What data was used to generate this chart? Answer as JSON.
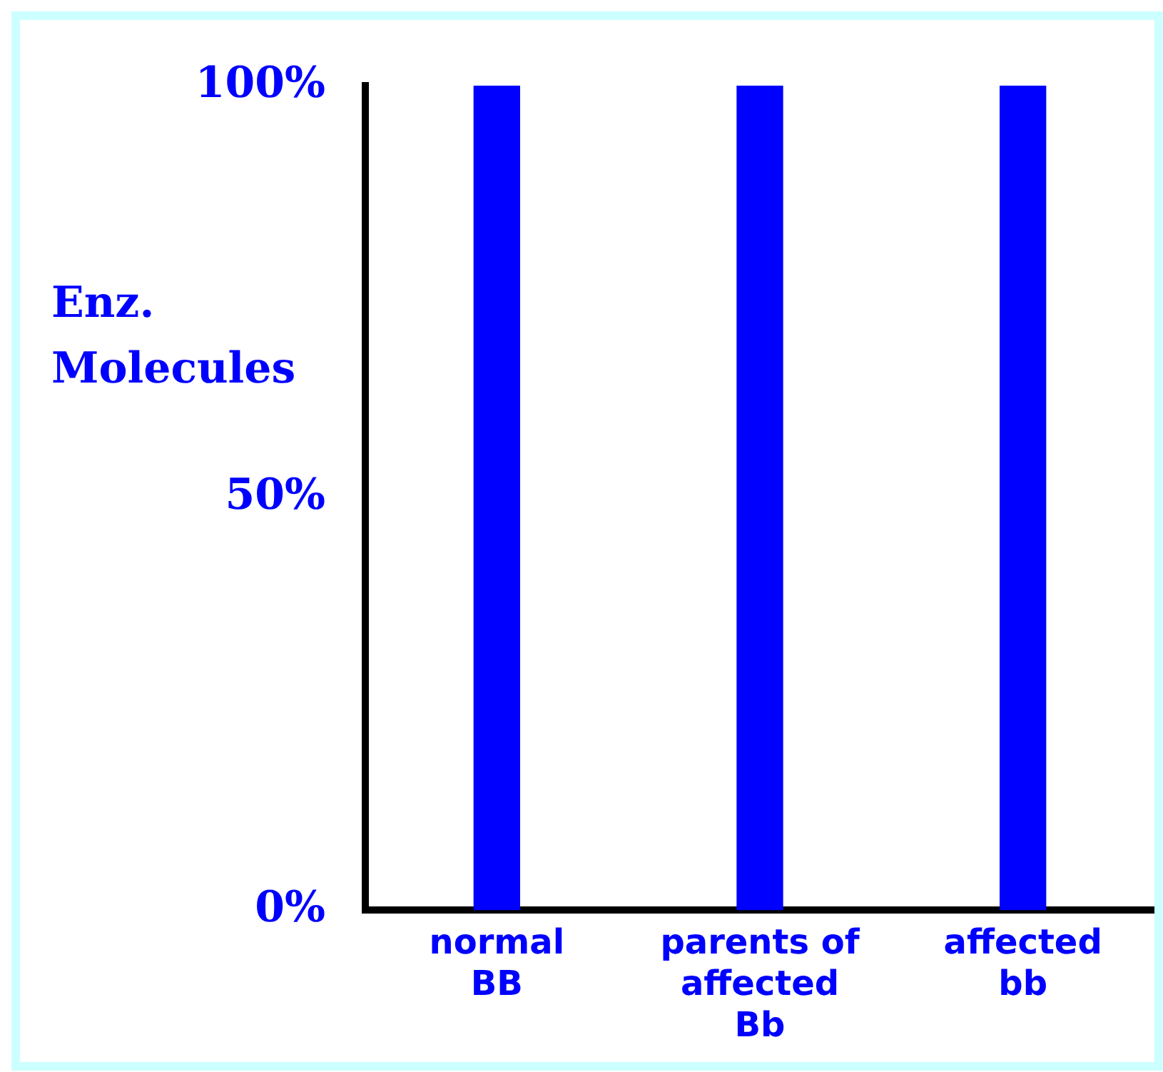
{
  "chart_data": {
    "type": "bar",
    "categories": [
      "normal\nBB",
      "parents of\naffected\nBb",
      "affected\nbb"
    ],
    "values": [
      100,
      100,
      100
    ],
    "color": "#0000ff",
    "ylabel": "Enz.\nMolecules",
    "ylim": [
      0,
      100
    ],
    "yticks": [
      {
        "value": 0,
        "label": "0%"
      },
      {
        "value": 50,
        "label": "50%"
      },
      {
        "value": 100,
        "label": "100%"
      }
    ],
    "grid": false,
    "legend": false
  }
}
